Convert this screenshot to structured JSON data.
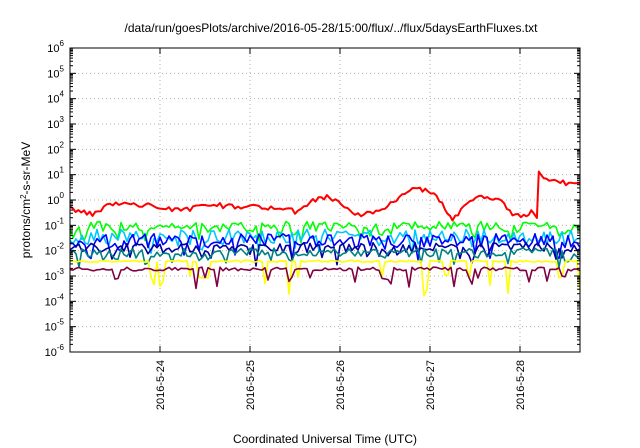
{
  "chart_data": {
    "type": "line",
    "title": "/data/run/goesPlots/archive/2016-05-28/15:00/flux/../flux/5daysEarthFluxes.txt",
    "xlabel": "Coordinated Universal Time (UTC)",
    "ylabel": "protons/cm²-s-sr-MeV",
    "ylabel_parts": {
      "pre": "protons/cm",
      "sup": "2",
      "post": "-s-sr-MeV"
    },
    "y_scale": "log",
    "ylim": [
      1e-06,
      1000000.0
    ],
    "y_ticks": [
      {
        "base": "10",
        "exp": "-6"
      },
      {
        "base": "10",
        "exp": "-5"
      },
      {
        "base": "10",
        "exp": "-4"
      },
      {
        "base": "10",
        "exp": "-3"
      },
      {
        "base": "10",
        "exp": "-2"
      },
      {
        "base": "10",
        "exp": "-1"
      },
      {
        "base": "10",
        "exp": "0"
      },
      {
        "base": "10",
        "exp": "1"
      },
      {
        "base": "10",
        "exp": "2"
      },
      {
        "base": "10",
        "exp": "3"
      },
      {
        "base": "10",
        "exp": "4"
      },
      {
        "base": "10",
        "exp": "5"
      },
      {
        "base": "10",
        "exp": "6"
      }
    ],
    "xlim": [
      "2016-05-23 00:00",
      "2016-05-28 16:00"
    ],
    "x_ticks": [
      "2016-5-24",
      "2016-5-25",
      "2016-5-26",
      "2016-5-27",
      "2016-5-28"
    ],
    "grid": true,
    "legend": "none",
    "series": [
      {
        "color": "#ff0000",
        "kind": "anchors",
        "points": [
          [
            "2016-05-23 00:00",
            0.5
          ],
          [
            "2016-05-23 03:00",
            0.35
          ],
          [
            "2016-05-23 06:00",
            0.28
          ],
          [
            "2016-05-23 09:00",
            0.5
          ],
          [
            "2016-05-23 13:00",
            0.75
          ],
          [
            "2016-05-23 17:00",
            0.62
          ],
          [
            "2016-05-23 20:00",
            0.65
          ],
          [
            "2016-05-24 00:00",
            0.5
          ],
          [
            "2016-05-24 04:00",
            0.4
          ],
          [
            "2016-05-24 08:00",
            0.45
          ],
          [
            "2016-05-24 12:00",
            0.55
          ],
          [
            "2016-05-24 16:00",
            0.6
          ],
          [
            "2016-05-24 20:00",
            0.55
          ],
          [
            "2016-05-25 00:00",
            0.55
          ],
          [
            "2016-05-25 04:00",
            0.5
          ],
          [
            "2016-05-25 08:00",
            0.55
          ],
          [
            "2016-05-25 12:00",
            0.35
          ],
          [
            "2016-05-25 16:00",
            0.8
          ],
          [
            "2016-05-25 19:00",
            1.4
          ],
          [
            "2016-05-25 22:00",
            1.1
          ],
          [
            "2016-05-26 02:00",
            0.55
          ],
          [
            "2016-05-26 04:00",
            0.25
          ],
          [
            "2016-05-26 08:00",
            0.28
          ],
          [
            "2016-05-26 12:00",
            0.5
          ],
          [
            "2016-05-26 15:00",
            1.0
          ],
          [
            "2016-05-26 18:00",
            2.0
          ],
          [
            "2016-05-26 20:00",
            3.2
          ],
          [
            "2016-05-26 22:00",
            2.6
          ],
          [
            "2016-05-27 01:00",
            1.8
          ],
          [
            "2016-05-27 04:00",
            0.5
          ],
          [
            "2016-05-27 06:00",
            0.18
          ],
          [
            "2016-05-27 09:00",
            0.5
          ],
          [
            "2016-05-27 13:00",
            1.4
          ],
          [
            "2016-05-27 16:00",
            1.2
          ],
          [
            "2016-05-27 19:00",
            0.9
          ],
          [
            "2016-05-27 22:00",
            0.3
          ],
          [
            "2016-05-28 01:00",
            0.22
          ],
          [
            "2016-05-28 03:00",
            0.35
          ],
          [
            "2016-05-28 04:30",
            0.2
          ],
          [
            "2016-05-28 05:00",
            12.0
          ],
          [
            "2016-05-28 07:00",
            7.0
          ],
          [
            "2016-05-28 10:00",
            5.0
          ],
          [
            "2016-05-28 13:00",
            4.5
          ],
          [
            "2016-05-28 16:00",
            4.5
          ]
        ]
      },
      {
        "color": "#00ff00",
        "kind": "noisy",
        "level": 0.09,
        "spread": 0.4,
        "dip": 0.45
      },
      {
        "color": "#00c8ff",
        "kind": "noisy",
        "level": 0.035,
        "spread": 0.6,
        "dip": 0.3
      },
      {
        "color": "#0000ff",
        "kind": "noisy",
        "level": 0.025,
        "spread": 0.55,
        "dip": 0.35
      },
      {
        "color": "#0000a0",
        "kind": "noisy",
        "level": 0.013,
        "spread": 0.4,
        "dip": 0.35
      },
      {
        "color": "#008080",
        "kind": "noisy",
        "level": 0.0085,
        "spread": 0.35,
        "dip": 0.3
      },
      {
        "color": "#ffff00",
        "kind": "noisy",
        "level": 0.0038,
        "spread": 0.08,
        "dip": 0.9
      },
      {
        "color": "#800040",
        "kind": "noisy",
        "level": 0.0019,
        "spread": 0.15,
        "dip": 0.5
      }
    ]
  }
}
